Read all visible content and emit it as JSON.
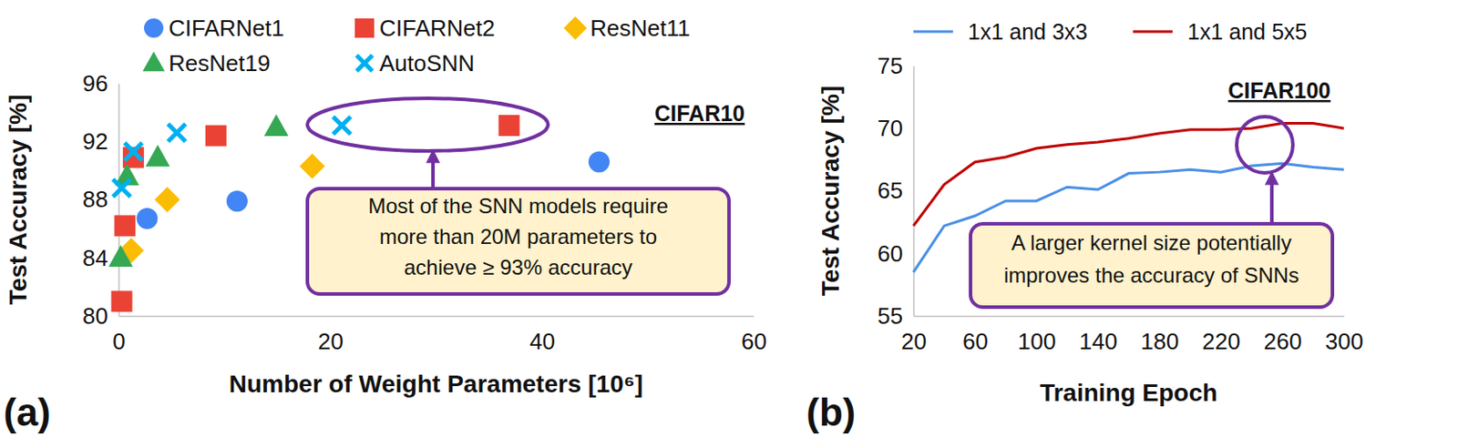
{
  "chart_data": [
    {
      "type": "scatter",
      "panel_label": "(a)",
      "title": "CIFAR10",
      "x_label": "Number of Weight Parameters [10⁶]",
      "y_label": "Test Accuracy [%]",
      "xlim": [
        0,
        60
      ],
      "xticks": [
        0,
        20,
        40,
        60
      ],
      "ylim": [
        80,
        96
      ],
      "yticks": [
        80,
        84,
        88,
        92,
        96
      ],
      "grid": false,
      "annotation": [
        "Most of the SNN models require",
        "more than 20M parameters to",
        "achieve ≥ 93% accuracy"
      ],
      "series": [
        {
          "name": "CIFARNet1",
          "color": "#4285f4",
          "marker": "circle",
          "x": [
            2.7,
            11.2,
            45.4
          ],
          "values": [
            86.7,
            87.9,
            90.6
          ]
        },
        {
          "name": "CIFARNet2",
          "color": "#ea4335",
          "marker": "square",
          "x": [
            0.3,
            0.6,
            1.4,
            9.2,
            36.9
          ],
          "values": [
            81.0,
            86.2,
            90.9,
            92.4,
            93.1
          ]
        },
        {
          "name": "ResNet11",
          "color": "#fbbc04",
          "marker": "diamond",
          "x": [
            1.2,
            4.6,
            18.3
          ],
          "values": [
            84.5,
            88.0,
            90.3
          ]
        },
        {
          "name": "ResNet19",
          "color": "#34a853",
          "marker": "triangle",
          "x": [
            0.2,
            0.8,
            3.7,
            14.9
          ],
          "values": [
            84.0,
            89.6,
            90.9,
            93.0
          ]
        },
        {
          "name": "AutoSNN",
          "color": "#00b0f0",
          "marker": "x",
          "x": [
            0.3,
            1.4,
            5.5,
            21.1
          ],
          "values": [
            88.8,
            91.3,
            92.6,
            93.1
          ]
        }
      ]
    },
    {
      "type": "line",
      "panel_label": "(b)",
      "title": "CIFAR100",
      "x_label": "Training Epoch",
      "y_label": "Test Accuracy [%]",
      "xlim": [
        20,
        300
      ],
      "xticks": [
        20,
        60,
        100,
        140,
        180,
        220,
        260,
        300
      ],
      "ylim": [
        55,
        75
      ],
      "yticks": [
        55,
        60,
        65,
        70,
        75
      ],
      "grid": false,
      "annotation": [
        "A larger kernel size potentially",
        "improves the accuracy of SNNs"
      ],
      "x": [
        20,
        40,
        60,
        80,
        100,
        120,
        140,
        160,
        180,
        200,
        220,
        240,
        260,
        280,
        300
      ],
      "series": [
        {
          "name": "1x1 and 3x3",
          "color": "#4a8fe7",
          "values": [
            58.5,
            62.2,
            63.0,
            64.2,
            64.2,
            65.3,
            65.1,
            66.4,
            66.5,
            66.7,
            66.5,
            67.0,
            67.2,
            66.9,
            66.7
          ]
        },
        {
          "name": "1x1 and 5x5",
          "color": "#c00000",
          "values": [
            62.2,
            65.5,
            67.3,
            67.7,
            68.4,
            68.7,
            68.9,
            69.2,
            69.6,
            69.9,
            69.9,
            70.0,
            70.4,
            70.4,
            70.0
          ]
        }
      ]
    }
  ]
}
